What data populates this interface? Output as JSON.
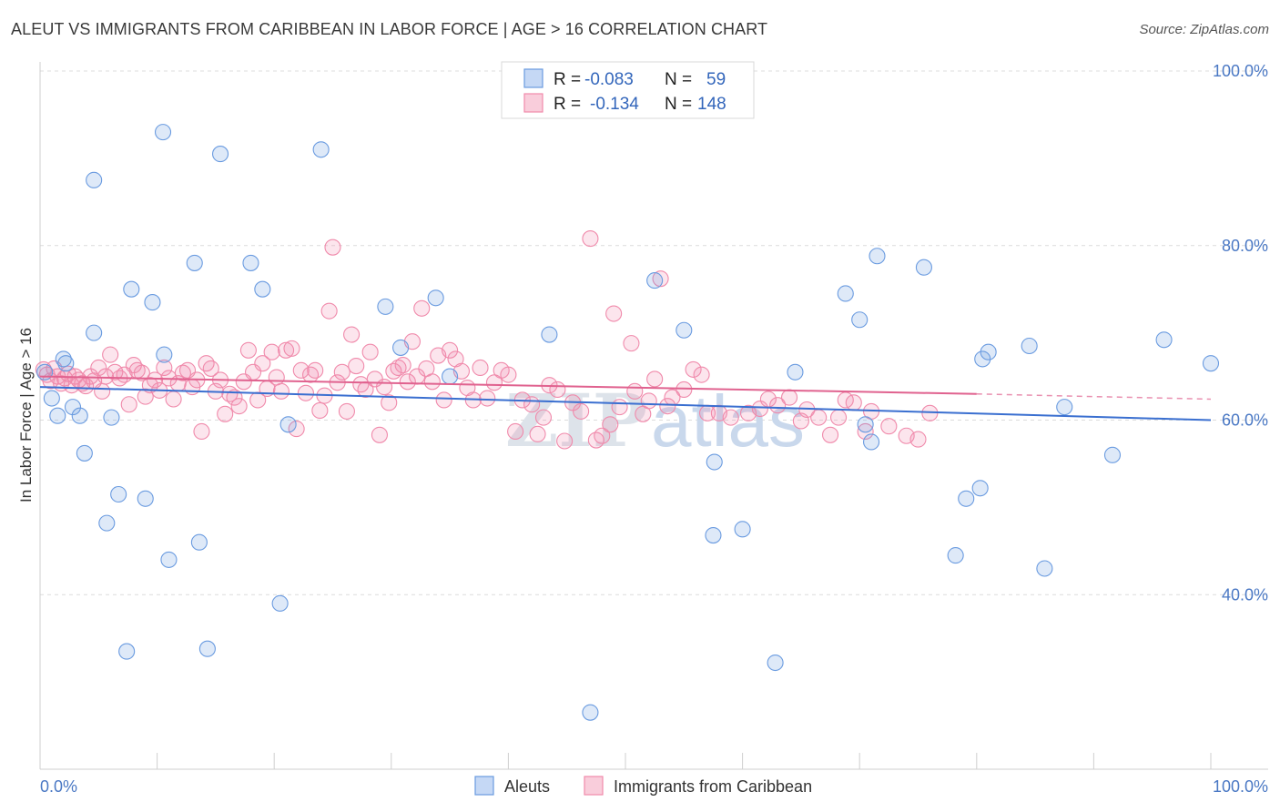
{
  "header": {
    "title": "ALEUT VS IMMIGRANTS FROM CARIBBEAN IN LABOR FORCE | AGE > 16 CORRELATION CHART",
    "source": "Source: ZipAtlas.com"
  },
  "watermark": {
    "part1": "ZIP",
    "part2": "atlas"
  },
  "legend": {
    "rows": [
      {
        "r_label": "R =",
        "r_value": "-0.083",
        "n_label": "N =",
        "n_value": "59"
      },
      {
        "r_label": "R =",
        "r_value": "-0.134",
        "n_label": "N =",
        "n_value": "148"
      }
    ]
  },
  "chart_data": {
    "type": "scatter",
    "xlabel": "",
    "ylabel": "In Labor Force | Age > 16",
    "xlim": [
      0,
      100
    ],
    "ylim": [
      20,
      100
    ],
    "x_tick_labels": [
      "0.0%",
      "100.0%"
    ],
    "y_ticks": [
      40,
      60,
      80,
      100
    ],
    "y_tick_labels": [
      "40.0%",
      "60.0%",
      "80.0%",
      "100.0%"
    ],
    "grid": true,
    "legend_position": "top-center",
    "colors": {
      "aleuts": "#6a9be0",
      "caribbean": "#f08aab",
      "aleuts_line": "#3a6fd0",
      "caribbean_line": "#e0628f"
    },
    "series": [
      {
        "name": "Aleuts",
        "trend": {
          "x0": 0,
          "y0": 63.8,
          "x1": 100,
          "y1": 60.0
        },
        "points": [
          [
            0.4,
            65.5
          ],
          [
            1,
            62.5
          ],
          [
            1.5,
            60.5
          ],
          [
            2,
            67
          ],
          [
            2.2,
            66.5
          ],
          [
            2.8,
            61.5
          ],
          [
            3.4,
            60.5
          ],
          [
            3.8,
            56.2
          ],
          [
            4.6,
            87.5
          ],
          [
            4.6,
            70
          ],
          [
            5.7,
            48.2
          ],
          [
            6.1,
            60.3
          ],
          [
            6.7,
            51.5
          ],
          [
            7.4,
            33.5
          ],
          [
            7.8,
            75
          ],
          [
            9,
            51
          ],
          [
            9.6,
            73.5
          ],
          [
            10.5,
            93
          ],
          [
            10.6,
            67.5
          ],
          [
            11,
            44
          ],
          [
            13.2,
            78
          ],
          [
            13.6,
            46
          ],
          [
            14.3,
            33.8
          ],
          [
            15.4,
            90.5
          ],
          [
            18,
            78
          ],
          [
            19,
            75
          ],
          [
            20.5,
            39
          ],
          [
            21.2,
            59.5
          ],
          [
            24,
            91
          ],
          [
            29.5,
            73
          ],
          [
            30.8,
            68.3
          ],
          [
            33.8,
            74
          ],
          [
            35,
            65
          ],
          [
            43.5,
            69.8
          ],
          [
            47,
            26.5
          ],
          [
            52.5,
            76
          ],
          [
            55,
            70.3
          ],
          [
            57.5,
            46.8
          ],
          [
            57.6,
            55.2
          ],
          [
            60,
            47.5
          ],
          [
            62.8,
            32.2
          ],
          [
            64.5,
            65.5
          ],
          [
            68.8,
            74.5
          ],
          [
            70,
            71.5
          ],
          [
            70.5,
            59.5
          ],
          [
            71,
            57.5
          ],
          [
            71.5,
            78.8
          ],
          [
            75.5,
            77.5
          ],
          [
            78.2,
            44.5
          ],
          [
            79.1,
            51
          ],
          [
            80.3,
            52.2
          ],
          [
            80.5,
            67
          ],
          [
            81,
            67.8
          ],
          [
            84.5,
            68.5
          ],
          [
            85.8,
            43
          ],
          [
            87.5,
            61.5
          ],
          [
            91.6,
            56
          ],
          [
            96,
            69.2
          ],
          [
            100,
            66.5
          ]
        ]
      },
      {
        "name": "Immigrants from Caribbean",
        "trend": {
          "x0": 0,
          "y0": 65.0,
          "x1": 80,
          "y1": 63.0,
          "dash_to_x": 100,
          "dash_to_y": 62.4
        },
        "points": [
          [
            0.3,
            65.8
          ],
          [
            0.6,
            65.2
          ],
          [
            0.9,
            64.5
          ],
          [
            1.2,
            65.9
          ],
          [
            1.5,
            65
          ],
          [
            1.8,
            64.2
          ],
          [
            2.1,
            64.8
          ],
          [
            2.4,
            65.3
          ],
          [
            2.7,
            64
          ],
          [
            3,
            65
          ],
          [
            3.3,
            64.6
          ],
          [
            3.6,
            64.2
          ],
          [
            3.9,
            63.9
          ],
          [
            4.3,
            65
          ],
          [
            4.6,
            64.5
          ],
          [
            5,
            66
          ],
          [
            5.3,
            63.3
          ],
          [
            5.6,
            65
          ],
          [
            6,
            67.5
          ],
          [
            6.4,
            65.5
          ],
          [
            6.8,
            64.8
          ],
          [
            7.2,
            65.2
          ],
          [
            7.6,
            61.8
          ],
          [
            8,
            66.3
          ],
          [
            8.3,
            65.7
          ],
          [
            8.7,
            65.4
          ],
          [
            9,
            62.7
          ],
          [
            9.4,
            64
          ],
          [
            9.8,
            64.6
          ],
          [
            10.2,
            63.4
          ],
          [
            10.6,
            66
          ],
          [
            11,
            64.8
          ],
          [
            11.4,
            62.4
          ],
          [
            11.8,
            64.2
          ],
          [
            12.2,
            65.4
          ],
          [
            12.6,
            65.7
          ],
          [
            13,
            63.8
          ],
          [
            13.4,
            64.6
          ],
          [
            13.8,
            58.7
          ],
          [
            14.2,
            66.5
          ],
          [
            14.6,
            65.9
          ],
          [
            15,
            63.3
          ],
          [
            15.4,
            64.6
          ],
          [
            15.8,
            60.7
          ],
          [
            16.2,
            63
          ],
          [
            16.6,
            62.6
          ],
          [
            17,
            61.6
          ],
          [
            17.4,
            64.4
          ],
          [
            17.8,
            68
          ],
          [
            18.2,
            65.5
          ],
          [
            18.6,
            62.3
          ],
          [
            19,
            66.5
          ],
          [
            19.4,
            63.6
          ],
          [
            19.8,
            67.8
          ],
          [
            20.2,
            64.9
          ],
          [
            20.6,
            63.3
          ],
          [
            21,
            68
          ],
          [
            21.5,
            68.2
          ],
          [
            21.9,
            59
          ],
          [
            22.3,
            65.7
          ],
          [
            22.7,
            63.1
          ],
          [
            23.1,
            65.2
          ],
          [
            23.5,
            65.7
          ],
          [
            23.9,
            61.1
          ],
          [
            24.3,
            62.8
          ],
          [
            24.7,
            72.5
          ],
          [
            25,
            79.8
          ],
          [
            25.4,
            64.3
          ],
          [
            25.8,
            65.5
          ],
          [
            26.2,
            61
          ],
          [
            26.6,
            69.8
          ],
          [
            27,
            66.2
          ],
          [
            27.4,
            64.1
          ],
          [
            27.8,
            63.5
          ],
          [
            28.2,
            67.8
          ],
          [
            28.6,
            64.7
          ],
          [
            29,
            58.3
          ],
          [
            29.4,
            63.8
          ],
          [
            29.8,
            62
          ],
          [
            30.2,
            65.6
          ],
          [
            30.6,
            66
          ],
          [
            31,
            66.3
          ],
          [
            31.4,
            64.4
          ],
          [
            31.8,
            69
          ],
          [
            32.2,
            65
          ],
          [
            32.6,
            72.8
          ],
          [
            33,
            65.9
          ],
          [
            33.5,
            64.4
          ],
          [
            34,
            67.4
          ],
          [
            34.5,
            62.3
          ],
          [
            35,
            68
          ],
          [
            35.5,
            67
          ],
          [
            36,
            65.6
          ],
          [
            36.5,
            63.7
          ],
          [
            37,
            62.3
          ],
          [
            37.6,
            66
          ],
          [
            38.2,
            62.5
          ],
          [
            38.8,
            64.3
          ],
          [
            39.4,
            65.7
          ],
          [
            40,
            65.2
          ],
          [
            40.6,
            58.7
          ],
          [
            41.2,
            62.3
          ],
          [
            42,
            61.8
          ],
          [
            42.5,
            58.4
          ],
          [
            43,
            60.3
          ],
          [
            43.5,
            64
          ],
          [
            44.2,
            63.5
          ],
          [
            44.8,
            57.6
          ],
          [
            45.5,
            62
          ],
          [
            46.2,
            61
          ],
          [
            47,
            80.8
          ],
          [
            47.5,
            57.7
          ],
          [
            48,
            58.2
          ],
          [
            48.7,
            59.5
          ],
          [
            49,
            72.2
          ],
          [
            49.5,
            61.5
          ],
          [
            50.5,
            68.8
          ],
          [
            50.8,
            63.3
          ],
          [
            51.5,
            60.7
          ],
          [
            52,
            62.2
          ],
          [
            52.5,
            64.7
          ],
          [
            53,
            76.2
          ],
          [
            53.6,
            61.6
          ],
          [
            54,
            62.6
          ],
          [
            55,
            63.5
          ],
          [
            55.8,
            65.8
          ],
          [
            56.5,
            65.2
          ],
          [
            57,
            60.8
          ],
          [
            58,
            60.8
          ],
          [
            59,
            60.3
          ],
          [
            60.5,
            60.8
          ],
          [
            61.5,
            61.3
          ],
          [
            62.2,
            62.4
          ],
          [
            63,
            61.7
          ],
          [
            64,
            62.6
          ],
          [
            65,
            59.9
          ],
          [
            65.5,
            61.2
          ],
          [
            66.5,
            60.3
          ],
          [
            67.5,
            58.3
          ],
          [
            68.2,
            60.3
          ],
          [
            68.8,
            62.3
          ],
          [
            69.5,
            62
          ],
          [
            70.5,
            58.7
          ],
          [
            71,
            61
          ],
          [
            72.5,
            59.3
          ],
          [
            74,
            58.2
          ],
          [
            75,
            57.8
          ],
          [
            76,
            60.8
          ]
        ]
      }
    ]
  },
  "bottom_legend": {
    "items": [
      "Aleuts",
      "Immigrants from Caribbean"
    ]
  }
}
